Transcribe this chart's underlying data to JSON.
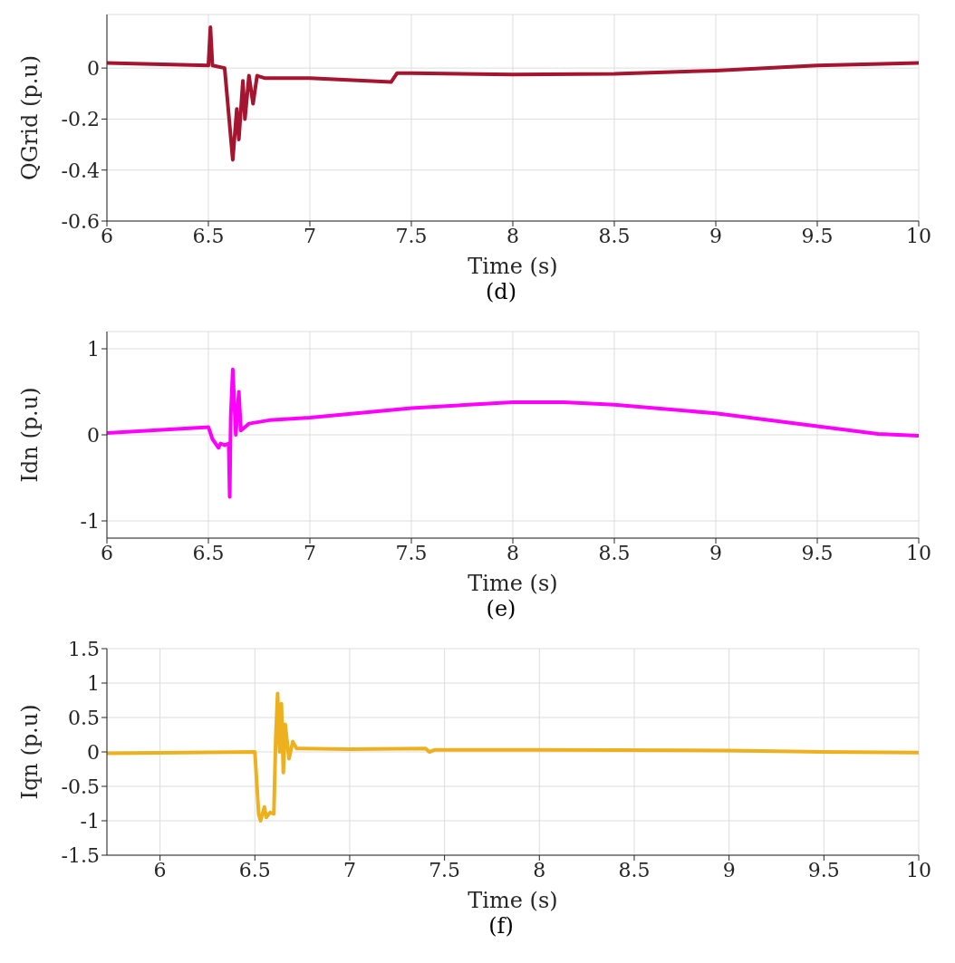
{
  "chart_data": [
    {
      "type": "line",
      "xlabel": "Time (s)",
      "ylabel": "QGrid (p.u)",
      "annotations": [
        "(d)"
      ],
      "grid": true,
      "xlim": [
        6,
        10
      ],
      "xticks": [
        6,
        6.5,
        7,
        7.5,
        8,
        8.5,
        9,
        9.5,
        10
      ],
      "ylim": [
        -0.6,
        0.21
      ],
      "yticks": [
        -0.6,
        -0.4,
        -0.2,
        0
      ],
      "series": [
        {
          "color": "#a51530",
          "x": [
            6,
            6.5,
            6.51,
            6.52,
            6.58,
            6.62,
            6.64,
            6.65,
            6.67,
            6.68,
            6.7,
            6.72,
            6.74,
            6.78,
            7,
            7.4,
            7.43,
            7.5,
            8,
            8.5,
            9,
            9.5,
            10
          ],
          "values": [
            0.02,
            0.01,
            0.16,
            0.01,
            0,
            -0.36,
            -0.16,
            -0.28,
            -0.05,
            -0.2,
            -0.03,
            -0.14,
            -0.03,
            -0.04,
            -0.04,
            -0.055,
            -0.02,
            -0.02,
            -0.025,
            -0.023,
            -0.01,
            0.01,
            0.02
          ]
        }
      ]
    },
    {
      "type": "line",
      "xlabel": "Time (s)",
      "ylabel": "Idn (p.u)",
      "annotations": [
        "(e)"
      ],
      "grid": true,
      "xlim": [
        6,
        10
      ],
      "xticks": [
        6,
        6.5,
        7,
        7.5,
        8,
        8.5,
        9,
        9.5,
        10
      ],
      "ylim": [
        -1.2,
        1.2
      ],
      "yticks": [
        -1,
        0,
        1
      ],
      "series": [
        {
          "color": "#ff00ff",
          "x": [
            6,
            6.5,
            6.52,
            6.55,
            6.56,
            6.58,
            6.6,
            6.605,
            6.61,
            6.62,
            6.635,
            6.65,
            6.66,
            6.7,
            6.8,
            7,
            7.5,
            8,
            8.25,
            8.5,
            9,
            9.5,
            9.8,
            10
          ],
          "values": [
            0.02,
            0.09,
            -0.05,
            -0.15,
            -0.1,
            -0.12,
            -0.1,
            -0.72,
            0.2,
            0.76,
            0,
            0.5,
            0.05,
            0.13,
            0.17,
            0.2,
            0.31,
            0.38,
            0.38,
            0.35,
            0.25,
            0.1,
            0.01,
            -0.01
          ]
        }
      ]
    },
    {
      "type": "line",
      "xlabel": "Time (s)",
      "ylabel": "Iqn (p.u)",
      "annotations": [
        "(f)"
      ],
      "grid": true,
      "xlim": [
        5.72,
        10
      ],
      "xticks": [
        6,
        6.5,
        7,
        7.5,
        8,
        8.5,
        9,
        9.5,
        10
      ],
      "ylim": [
        -1.5,
        1.5
      ],
      "yticks": [
        -1.5,
        -1,
        -0.5,
        0,
        0.5,
        1,
        1.5
      ],
      "series": [
        {
          "color": "#edb120",
          "x": [
            5.72,
            6.5,
            6.52,
            6.53,
            6.55,
            6.56,
            6.58,
            6.6,
            6.61,
            6.62,
            6.63,
            6.64,
            6.65,
            6.66,
            6.68,
            6.7,
            6.72,
            6.75,
            7,
            7.4,
            7.42,
            7.45,
            8,
            9,
            9.5,
            10
          ],
          "values": [
            -0.02,
            0,
            -0.9,
            -1,
            -0.8,
            -0.95,
            -0.88,
            -0.9,
            0.2,
            0.85,
            0,
            0.7,
            -0.3,
            0.4,
            -0.1,
            0.15,
            0.05,
            0.05,
            0.04,
            0.05,
            0,
            0.03,
            0.03,
            0.02,
            0,
            -0.01
          ]
        }
      ]
    }
  ]
}
